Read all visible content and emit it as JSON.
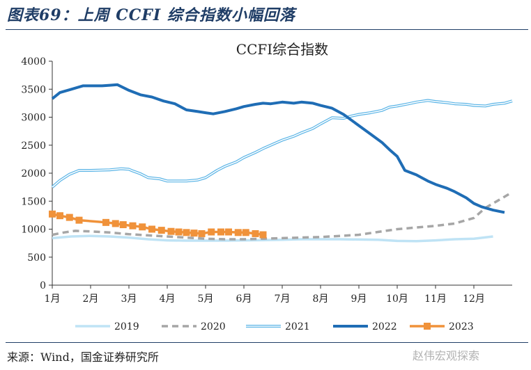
{
  "figure_title": "图表69：上周 CCFI 综合指数小幅回落",
  "source": "来源：Wind，国金证券研究所",
  "watermark": "赵伟宏观探索",
  "colors": {
    "2019": "#bfe3f5",
    "2020": "#a6a6a6",
    "2021": "#5ab4e6",
    "2022": "#1f6db5",
    "2023": "#f0923a",
    "title": "#1f3d66"
  },
  "chart_data": {
    "type": "line",
    "title": "CCFI综合指数",
    "xlabel": "",
    "ylabel": "",
    "x_ticks": [
      "1月",
      "2月",
      "3月",
      "4月",
      "5月",
      "6月",
      "7月",
      "8月",
      "9月",
      "10月",
      "11月",
      "12月"
    ],
    "xlim": [
      1,
      13
    ],
    "ylim": [
      0,
      4000
    ],
    "y_ticks": [
      0,
      500,
      1000,
      1500,
      2000,
      2500,
      3000,
      3500,
      4000
    ],
    "grid": false,
    "legend": "bottom",
    "series": [
      {
        "name": "2019",
        "style": "solid-light",
        "x": [
          1.0,
          1.5,
          2.0,
          2.5,
          3.0,
          3.5,
          4.0,
          4.5,
          5.0,
          5.5,
          6.0,
          6.5,
          7.0,
          7.5,
          8.0,
          8.5,
          9.0,
          9.5,
          10.0,
          10.5,
          11.0,
          11.5,
          12.0,
          12.5
        ],
        "y": [
          840,
          870,
          880,
          870,
          850,
          820,
          800,
          795,
          795,
          795,
          800,
          805,
          810,
          820,
          820,
          820,
          815,
          810,
          790,
          785,
          800,
          820,
          830,
          870
        ]
      },
      {
        "name": "2020",
        "style": "dashed",
        "x": [
          1.0,
          1.3,
          1.6,
          2.0,
          2.5,
          3.0,
          3.5,
          4.0,
          4.5,
          5.0,
          5.5,
          6.0,
          6.5,
          7.0,
          7.5,
          8.0,
          8.5,
          9.0,
          9.5,
          10.0,
          10.5,
          11.0,
          11.5,
          12.0,
          12.3,
          12.6,
          13.0
        ],
        "y": [
          900,
          940,
          970,
          960,
          940,
          910,
          890,
          870,
          850,
          830,
          820,
          820,
          830,
          840,
          850,
          860,
          880,
          900,
          950,
          1000,
          1030,
          1060,
          1100,
          1200,
          1380,
          1500,
          1660
        ]
      },
      {
        "name": "2021",
        "style": "double",
        "x": [
          1.0,
          1.2,
          1.45,
          1.7,
          2.0,
          2.5,
          2.8,
          3.0,
          3.1,
          3.3,
          3.5,
          3.8,
          4.0,
          4.5,
          4.8,
          5.0,
          5.3,
          5.5,
          5.8,
          6.0,
          6.3,
          6.5,
          6.8,
          7.0,
          7.3,
          7.5,
          7.8,
          8.0,
          8.3,
          8.6,
          8.8,
          9.0,
          9.3,
          9.6,
          9.8,
          10.0,
          10.3,
          10.5,
          10.8,
          11.0,
          11.3,
          11.5,
          11.8,
          12.0,
          12.3,
          12.5,
          12.8,
          13.0
        ],
        "y": [
          1750,
          1870,
          1980,
          2050,
          2050,
          2060,
          2080,
          2070,
          2040,
          1990,
          1920,
          1900,
          1860,
          1860,
          1880,
          1920,
          2050,
          2120,
          2200,
          2280,
          2370,
          2440,
          2530,
          2590,
          2660,
          2720,
          2800,
          2880,
          2990,
          2980,
          3020,
          3050,
          3080,
          3120,
          3180,
          3200,
          3240,
          3270,
          3300,
          3280,
          3260,
          3240,
          3230,
          3210,
          3200,
          3230,
          3250,
          3290
        ]
      },
      {
        "name": "2022",
        "style": "solid-bold",
        "x": [
          1.0,
          1.2,
          1.5,
          1.8,
          2.0,
          2.3,
          2.5,
          2.7,
          3.0,
          3.3,
          3.6,
          3.9,
          4.2,
          4.5,
          4.8,
          5.0,
          5.2,
          5.5,
          5.8,
          6.0,
          6.3,
          6.5,
          6.7,
          7.0,
          7.3,
          7.5,
          7.8,
          8.0,
          8.3,
          8.6,
          9.0,
          9.3,
          9.6,
          9.8,
          10.0,
          10.2,
          10.5,
          10.8,
          11.0,
          11.3,
          11.5,
          11.8,
          12.0,
          12.2,
          12.5,
          12.8
        ],
        "y": [
          3330,
          3440,
          3500,
          3560,
          3560,
          3560,
          3570,
          3580,
          3480,
          3400,
          3360,
          3290,
          3240,
          3130,
          3100,
          3080,
          3060,
          3100,
          3150,
          3190,
          3230,
          3250,
          3240,
          3270,
          3250,
          3270,
          3250,
          3210,
          3160,
          3050,
          2850,
          2700,
          2550,
          2420,
          2300,
          2050,
          1970,
          1860,
          1800,
          1730,
          1670,
          1560,
          1460,
          1400,
          1340,
          1300
        ]
      },
      {
        "name": "2023",
        "style": "solid-square",
        "x": [
          1.0,
          1.2,
          1.45,
          1.7,
          2.4,
          2.65,
          2.85,
          3.1,
          3.35,
          3.6,
          3.85,
          4.1,
          4.3,
          4.5,
          4.7,
          4.9,
          5.15,
          5.4,
          5.6,
          5.85,
          6.05,
          6.3,
          6.5
        ],
        "y": [
          1270,
          1240,
          1210,
          1160,
          1120,
          1100,
          1080,
          1060,
          1040,
          1000,
          980,
          960,
          950,
          940,
          930,
          920,
          950,
          950,
          950,
          940,
          940,
          920,
          900
        ]
      }
    ]
  }
}
